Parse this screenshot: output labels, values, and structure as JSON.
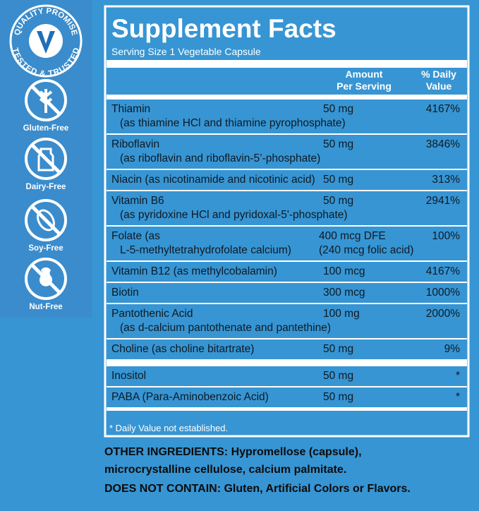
{
  "sidebar": {
    "seal": {
      "top": "QUALITY PROMISE",
      "bottom": "TESTED & TRUSTED"
    },
    "badges": [
      "Gluten-Free",
      "Dairy-Free",
      "Soy-Free",
      "Nut-Free"
    ]
  },
  "header": {
    "title": "Supplement Facts",
    "serving_size": "Serving Size 1 Vegetable Capsule"
  },
  "table": {
    "columns": {
      "amount": [
        "Amount",
        "Per Serving"
      ],
      "daily_value": [
        "% Daily",
        "Value"
      ]
    },
    "rows": [
      {
        "lines": [
          "Thiamin",
          "(as thiamine HCl and thiamine pyrophosphate)"
        ],
        "amount": "50 mg",
        "daily_value": "4167%"
      },
      {
        "lines": [
          "Riboflavin",
          "(as riboflavin and riboflavin-5’-phosphate)"
        ],
        "amount": "50 mg",
        "daily_value": "3846%"
      },
      {
        "lines": [
          "Niacin (as nicotinamide and nicotinic acid)"
        ],
        "amount": "50 mg",
        "daily_value": "313%"
      },
      {
        "lines": [
          "Vitamin B6",
          "(as pyridoxine HCl and pyridoxal-5'-phosphate)"
        ],
        "amount": "50 mg",
        "daily_value": "2941%"
      },
      {
        "lines": [
          "Folate (as",
          "L-5-methyltetrahydrofolate calcium)"
        ],
        "amount": "400 mcg DFE",
        "amount_note": "(240 mcg folic acid)",
        "daily_value": "100%"
      },
      {
        "lines": [
          "Vitamin B12 (as methylcobalamin)"
        ],
        "amount": "100 mcg",
        "daily_value": "4167%"
      },
      {
        "lines": [
          "Biotin"
        ],
        "amount": "300 mcg",
        "daily_value": "1000%"
      },
      {
        "lines": [
          "Pantothenic Acid",
          "(as d-calcium pantothenate and pantethine)"
        ],
        "amount": "100 mg",
        "daily_value": "2000%"
      },
      {
        "lines": [
          "Choline (as choline bitartrate)"
        ],
        "amount": "50 mg",
        "daily_value": "9%"
      },
      {
        "lines": [
          "Inositol"
        ],
        "amount": "50 mg",
        "daily_value": "*"
      },
      {
        "lines": [
          "PABA (Para-Aminobenzoic Acid)"
        ],
        "amount": "50 mg",
        "daily_value": "*"
      }
    ],
    "footnote": "* Daily Value not established."
  },
  "other_ingredients": {
    "label": "OTHER INGREDIENTS:",
    "lines": [
      "Hypromellose (capsule),",
      "microcrystalline cellulose, calcium palmitate."
    ]
  },
  "does_not_contain": {
    "label": "DOES NOT CONTAIN:",
    "text": "Gluten, Artificial Colors or Flavors."
  }
}
